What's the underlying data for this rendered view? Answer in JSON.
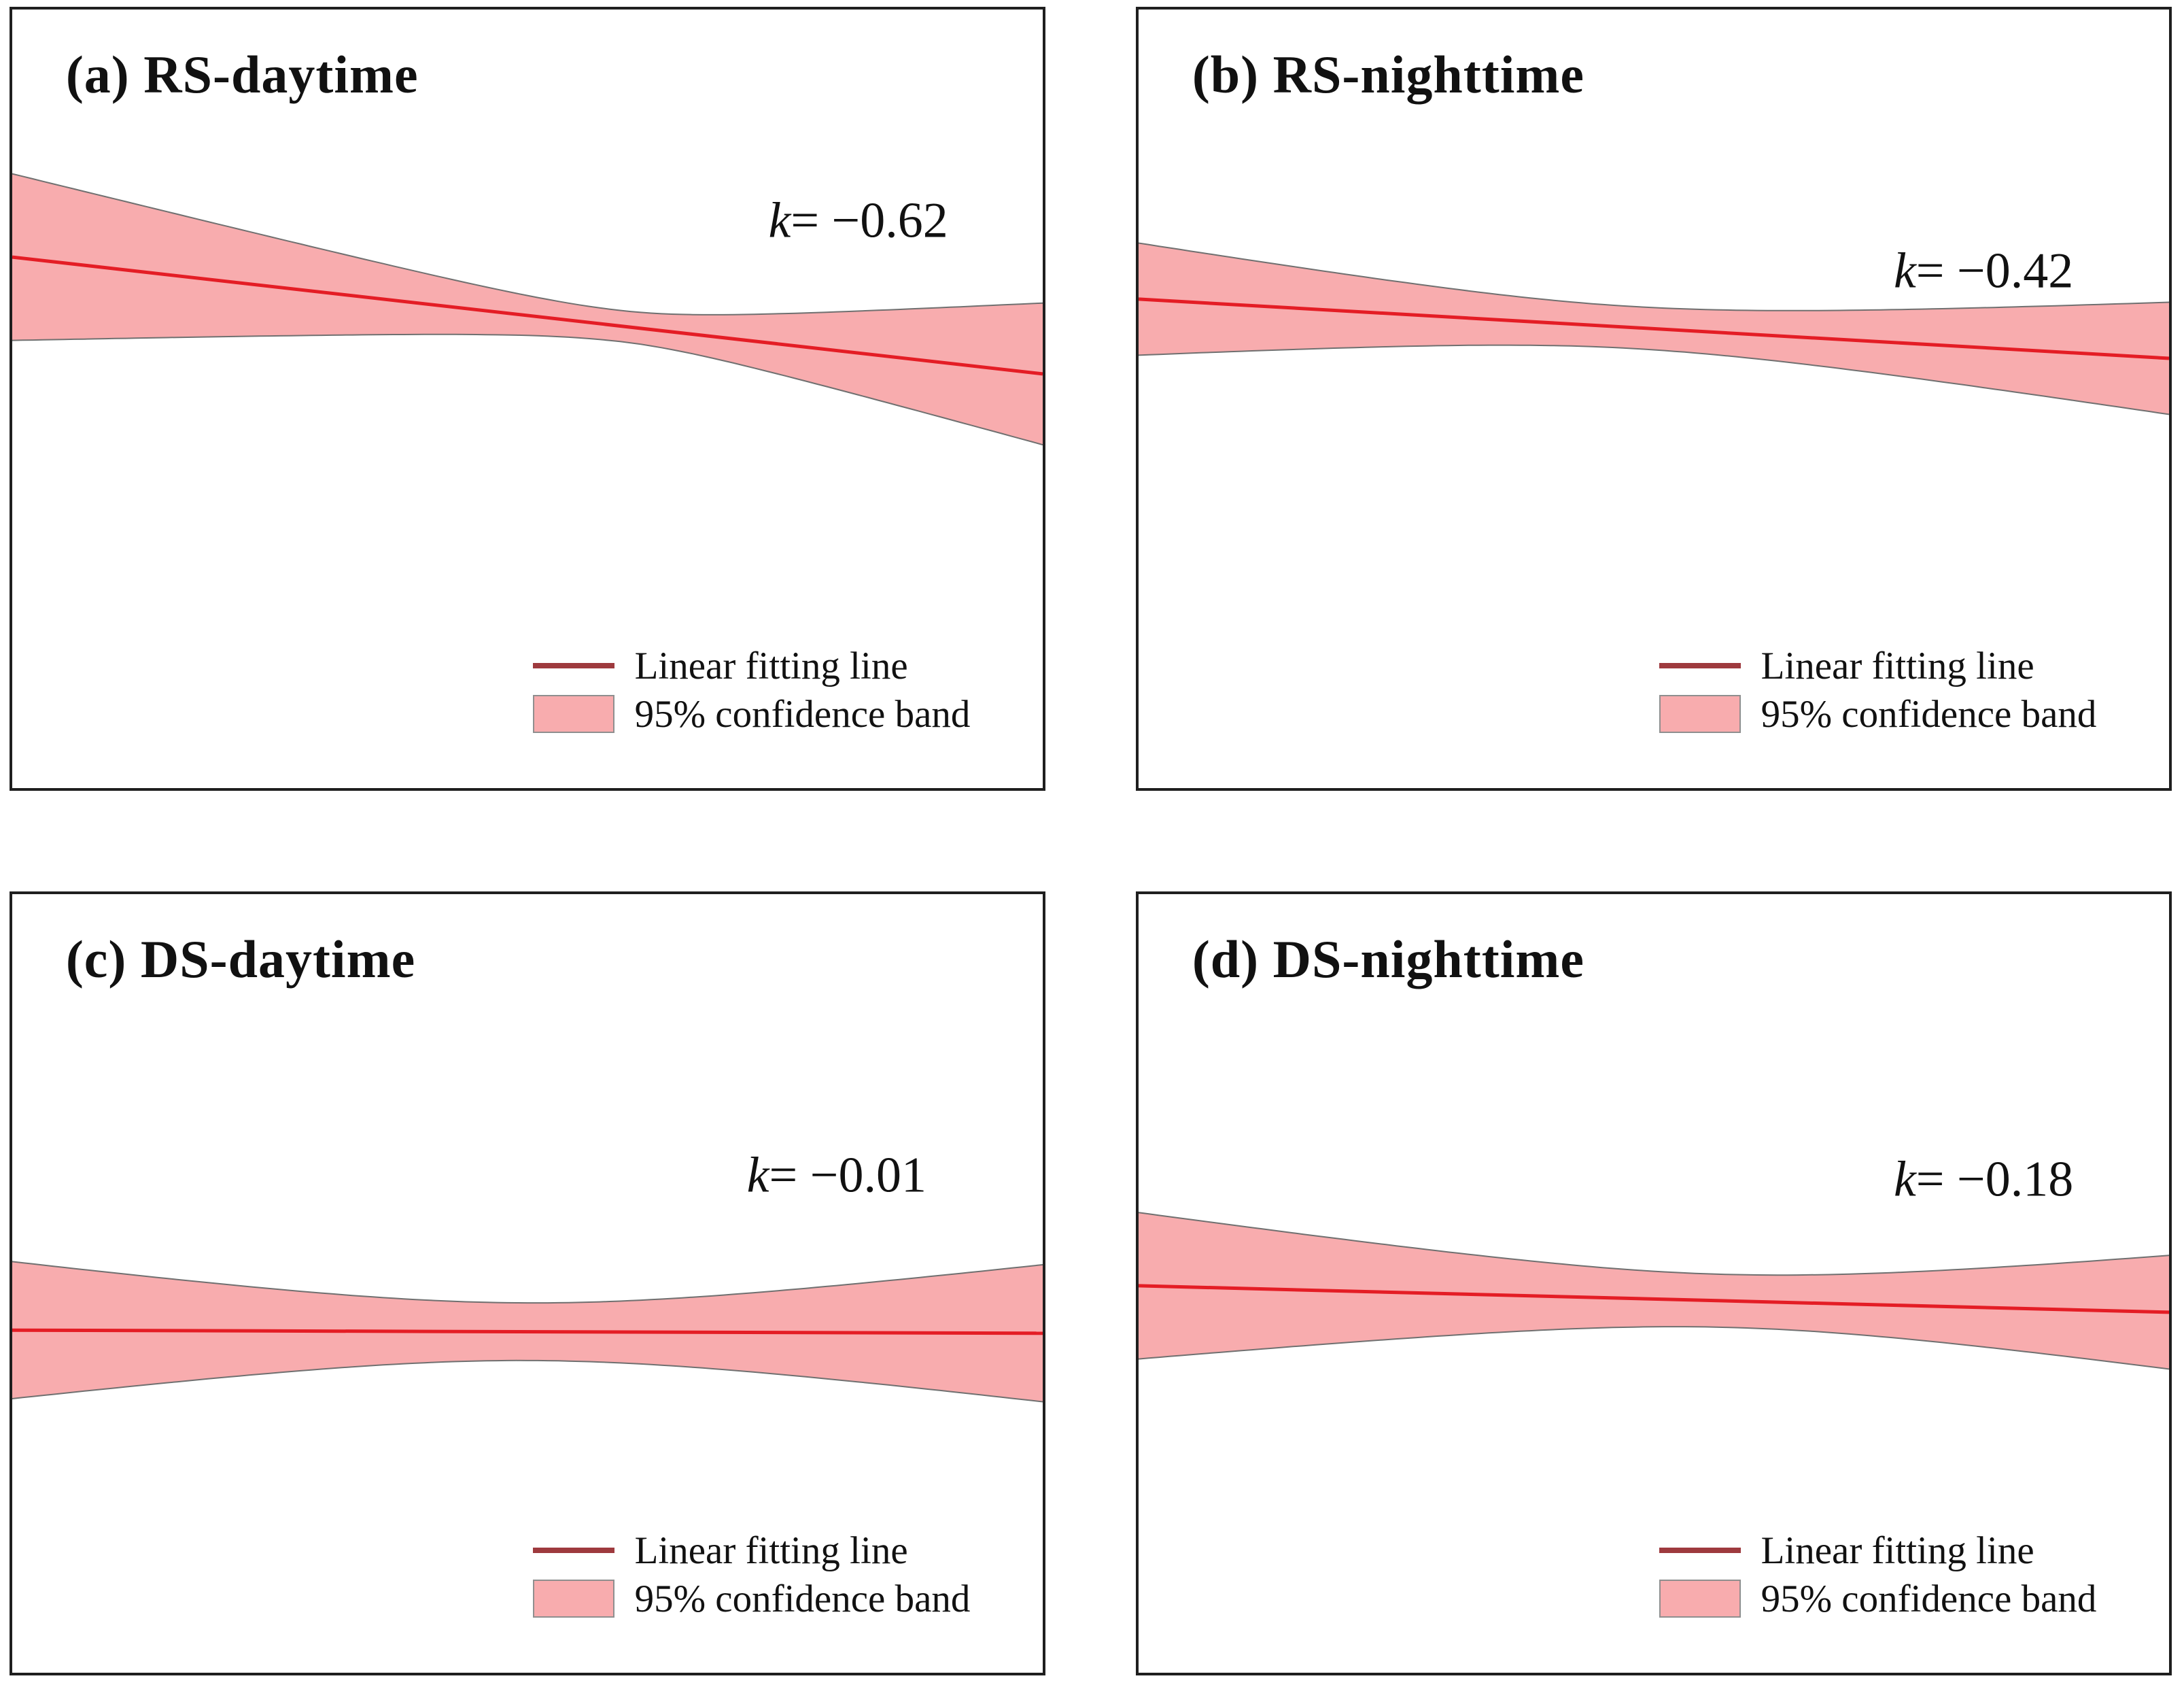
{
  "figure": {
    "background": "#ffffff",
    "panel_border_color": "#1f1f1f",
    "description_visible_text_only": true
  },
  "colors": {
    "band_fill": "#f8acae",
    "band_edge": "#707070",
    "fit_line": "#e41d25",
    "legend_line_swatch": "#9e3a3e",
    "text": "#111111"
  },
  "legend": {
    "line_label": "Linear fitting line",
    "band_label": "95% confidence band",
    "position": "inside-bottom-right",
    "line_swatch_icon": "red-line-swatch",
    "band_swatch_icon": "pink-box-swatch"
  },
  "chart_data": [
    {
      "type": "area",
      "panel": "a",
      "title": "(a) RS-daytime",
      "k_var": "k",
      "k_value": "= −0.62",
      "slope_k": -0.62,
      "axes_visible": false,
      "grid": false,
      "series": [
        {
          "name": "Linear fitting line",
          "kind": "line"
        },
        {
          "name": "95% confidence band",
          "kind": "band"
        }
      ],
      "line": {
        "y_left": 0.318,
        "y_right": 0.468
      },
      "band": {
        "x_waist": 0.59,
        "half_left": 0.107,
        "half_waist": 0.02,
        "half_right": 0.091
      },
      "label": {
        "x": 0.821,
        "y": 0.272
      }
    },
    {
      "type": "area",
      "panel": "b",
      "title": "(b) RS-nighttime",
      "k_var": "k",
      "k_value": "= −0.42",
      "slope_k": -0.42,
      "axes_visible": false,
      "grid": false,
      "series": [
        {
          "name": "Linear fitting line",
          "kind": "line"
        },
        {
          "name": "95% confidence band",
          "kind": "band"
        }
      ],
      "line": {
        "y_left": 0.372,
        "y_right": 0.448
      },
      "band": {
        "x_waist": 0.48,
        "half_left": 0.072,
        "half_waist": 0.027,
        "half_right": 0.072
      },
      "label": {
        "x": 0.82,
        "y": 0.336
      }
    },
    {
      "type": "area",
      "panel": "c",
      "title": "(c) DS-daytime",
      "k_var": "k",
      "k_value": "= −0.01",
      "slope_k": -0.01,
      "axes_visible": false,
      "grid": false,
      "series": [
        {
          "name": "Linear fitting line",
          "kind": "line"
        },
        {
          "name": "95% confidence band",
          "kind": "band"
        }
      ],
      "line": {
        "y_left": 0.56,
        "y_right": 0.564
      },
      "band": {
        "x_waist": 0.5,
        "half_left": 0.088,
        "half_waist": 0.037,
        "half_right": 0.088
      },
      "label": {
        "x": 0.8,
        "y": 0.362
      }
    },
    {
      "type": "area",
      "panel": "d",
      "title": "(d) DS-nighttime",
      "k_var": "k",
      "k_value": "= −0.18",
      "slope_k": -0.18,
      "axes_visible": false,
      "grid": false,
      "series": [
        {
          "name": "Linear fitting line",
          "kind": "line"
        },
        {
          "name": "95% confidence band",
          "kind": "band"
        }
      ],
      "line": {
        "y_left": 0.503,
        "y_right": 0.537
      },
      "band": {
        "x_waist": 0.57,
        "half_left": 0.094,
        "half_waist": 0.034,
        "half_right": 0.073
      },
      "label": {
        "x": 0.82,
        "y": 0.367
      }
    }
  ]
}
